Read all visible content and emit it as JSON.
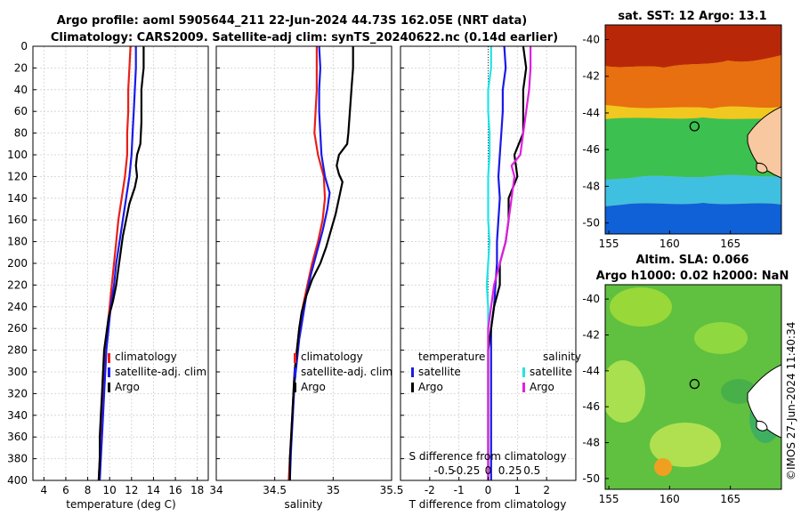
{
  "title_line1": "Argo profile: aoml 5905644_211 22-Jun-2024 44.73S 162.05E (NRT data)",
  "title_line2": "Climatology: CARS2009. Satellite-adj clim: synTS_20240622.nc (0.14d earlier)",
  "timestamp": "©IMOS 27-Jun-2024 11:40:34",
  "colors": {
    "climatology": "#e8201a",
    "satellite": "#1a1ae8",
    "argo": "#000000",
    "satellite_s": "#22e4e8",
    "argo_s": "#e020e0"
  },
  "chart_data": [
    {
      "type": "line",
      "name": "temperature-profile",
      "xlabel": "temperature (deg C)",
      "ylabel": "",
      "xlim": [
        3,
        19
      ],
      "ylim": [
        400,
        0
      ],
      "xticks": [
        4,
        6,
        8,
        10,
        12,
        14,
        16,
        18
      ],
      "yticks": [
        0,
        20,
        40,
        60,
        80,
        100,
        120,
        140,
        160,
        180,
        200,
        220,
        240,
        260,
        280,
        300,
        320,
        340,
        360,
        380,
        400
      ],
      "legend": [
        "climatology",
        "satellite-adj. clim",
        "Argo"
      ],
      "series": [
        {
          "name": "climatology",
          "color": "climatology",
          "points": [
            [
              11.9,
              0
            ],
            [
              11.8,
              20
            ],
            [
              11.7,
              40
            ],
            [
              11.7,
              60
            ],
            [
              11.6,
              80
            ],
            [
              11.6,
              100
            ],
            [
              11.4,
              120
            ],
            [
              11.1,
              140
            ],
            [
              10.8,
              160
            ],
            [
              10.6,
              180
            ],
            [
              10.4,
              200
            ],
            [
              10.2,
              220
            ],
            [
              10.0,
              240
            ],
            [
              9.8,
              260
            ],
            [
              9.6,
              280
            ],
            [
              9.5,
              300
            ],
            [
              9.4,
              320
            ],
            [
              9.3,
              340
            ],
            [
              9.2,
              360
            ],
            [
              9.1,
              380
            ],
            [
              9.0,
              400
            ]
          ]
        },
        {
          "name": "satellite-adj. clim",
          "color": "satellite",
          "points": [
            [
              12.4,
              0
            ],
            [
              12.4,
              20
            ],
            [
              12.3,
              40
            ],
            [
              12.2,
              60
            ],
            [
              12.1,
              80
            ],
            [
              12.0,
              100
            ],
            [
              11.8,
              120
            ],
            [
              11.5,
              140
            ],
            [
              11.2,
              160
            ],
            [
              10.9,
              180
            ],
            [
              10.6,
              200
            ],
            [
              10.4,
              220
            ],
            [
              10.1,
              240
            ],
            [
              9.9,
              260
            ],
            [
              9.7,
              280
            ],
            [
              9.6,
              300
            ],
            [
              9.5,
              320
            ],
            [
              9.4,
              340
            ],
            [
              9.3,
              360
            ],
            [
              9.2,
              380
            ],
            [
              9.1,
              400
            ]
          ]
        },
        {
          "name": "Argo",
          "color": "argo",
          "points": [
            [
              13.1,
              0
            ],
            [
              13.1,
              20
            ],
            [
              13.0,
              30
            ],
            [
              12.9,
              40
            ],
            [
              12.9,
              50
            ],
            [
              12.9,
              70
            ],
            [
              12.8,
              90
            ],
            [
              12.5,
              100
            ],
            [
              12.4,
              110
            ],
            [
              12.5,
              120
            ],
            [
              12.3,
              130
            ],
            [
              11.8,
              145
            ],
            [
              11.5,
              160
            ],
            [
              11.2,
              175
            ],
            [
              11.0,
              190
            ],
            [
              10.8,
              205
            ],
            [
              10.6,
              220
            ],
            [
              10.3,
              235
            ],
            [
              9.9,
              250
            ],
            [
              9.7,
              265
            ],
            [
              9.5,
              280
            ],
            [
              9.4,
              300
            ],
            [
              9.3,
              320
            ],
            [
              9.2,
              340
            ],
            [
              9.1,
              360
            ],
            [
              9.1,
              380
            ],
            [
              9.0,
              400
            ]
          ]
        }
      ]
    },
    {
      "type": "line",
      "name": "salinity-profile",
      "xlabel": "salinity",
      "ylabel": "",
      "xlim": [
        34,
        35.5
      ],
      "ylim": [
        400,
        0
      ],
      "xticks": [
        34,
        34.5,
        35,
        35.5
      ],
      "legend": [
        "climatology",
        "satellite-adj. clim",
        "Argo"
      ],
      "series": [
        {
          "name": "climatology",
          "color": "climatology",
          "points": [
            [
              34.86,
              0
            ],
            [
              34.86,
              20
            ],
            [
              34.86,
              40
            ],
            [
              34.85,
              60
            ],
            [
              34.84,
              80
            ],
            [
              34.87,
              100
            ],
            [
              34.92,
              120
            ],
            [
              34.93,
              140
            ],
            [
              34.91,
              160
            ],
            [
              34.87,
              180
            ],
            [
              34.82,
              200
            ],
            [
              34.78,
              220
            ],
            [
              34.74,
              240
            ],
            [
              34.71,
              260
            ],
            [
              34.69,
              280
            ],
            [
              34.67,
              300
            ],
            [
              34.66,
              320
            ],
            [
              34.65,
              340
            ],
            [
              34.64,
              360
            ],
            [
              34.63,
              380
            ],
            [
              34.62,
              400
            ]
          ]
        },
        {
          "name": "satellite-adj. clim",
          "color": "satellite",
          "points": [
            [
              34.88,
              0
            ],
            [
              34.89,
              20
            ],
            [
              34.88,
              40
            ],
            [
              34.88,
              60
            ],
            [
              34.89,
              80
            ],
            [
              34.9,
              100
            ],
            [
              34.93,
              120
            ],
            [
              34.97,
              135
            ],
            [
              34.95,
              150
            ],
            [
              34.91,
              170
            ],
            [
              34.86,
              190
            ],
            [
              34.81,
              210
            ],
            [
              34.77,
              230
            ],
            [
              34.74,
              250
            ],
            [
              34.71,
              270
            ],
            [
              34.69,
              290
            ],
            [
              34.67,
              310
            ],
            [
              34.66,
              330
            ],
            [
              34.65,
              350
            ],
            [
              34.64,
              370
            ],
            [
              34.63,
              400
            ]
          ]
        },
        {
          "name": "Argo",
          "color": "argo",
          "points": [
            [
              35.17,
              0
            ],
            [
              35.17,
              20
            ],
            [
              35.16,
              35
            ],
            [
              35.15,
              50
            ],
            [
              35.14,
              65
            ],
            [
              35.13,
              80
            ],
            [
              35.12,
              90
            ],
            [
              35.05,
              100
            ],
            [
              35.03,
              110
            ],
            [
              35.05,
              118
            ],
            [
              35.08,
              125
            ],
            [
              35.05,
              140
            ],
            [
              35.02,
              155
            ],
            [
              34.98,
              170
            ],
            [
              34.94,
              185
            ],
            [
              34.89,
              200
            ],
            [
              34.82,
              215
            ],
            [
              34.77,
              230
            ],
            [
              34.73,
              245
            ],
            [
              34.71,
              260
            ],
            [
              34.69,
              280
            ],
            [
              34.67,
              300
            ],
            [
              34.66,
              320
            ],
            [
              34.65,
              340
            ],
            [
              34.64,
              360
            ],
            [
              34.63,
              380
            ],
            [
              34.63,
              400
            ]
          ]
        }
      ]
    },
    {
      "type": "line",
      "name": "difference-profile",
      "xlabel": "T difference from climatology",
      "x2label": "S difference from climatology",
      "xlim": [
        -3,
        3
      ],
      "ylim": [
        400,
        0
      ],
      "xticks": [
        -2,
        -1,
        0,
        1,
        2
      ],
      "x2ticks": [
        "-0.5",
        "-0.25",
        "0",
        "0.25",
        "0.5"
      ],
      "legend_temperature": "temperature",
      "legend_salinity": "salinity",
      "legend_entries": [
        "satellite",
        "Argo",
        "satellite",
        "Argo"
      ],
      "series": [
        {
          "name": "T satellite",
          "color": "satellite",
          "points": [
            [
              0.55,
              0
            ],
            [
              0.6,
              20
            ],
            [
              0.5,
              40
            ],
            [
              0.5,
              60
            ],
            [
              0.45,
              80
            ],
            [
              0.4,
              100
            ],
            [
              0.35,
              120
            ],
            [
              0.4,
              140
            ],
            [
              0.35,
              160
            ],
            [
              0.3,
              180
            ],
            [
              0.3,
              200
            ],
            [
              0.25,
              220
            ],
            [
              0.2,
              240
            ],
            [
              0.1,
              260
            ],
            [
              0.1,
              280
            ],
            [
              0.1,
              300
            ],
            [
              0.1,
              320
            ],
            [
              0.1,
              340
            ],
            [
              0.1,
              360
            ],
            [
              0.1,
              380
            ],
            [
              0.1,
              400
            ]
          ]
        },
        {
          "name": "T Argo",
          "color": "argo",
          "points": [
            [
              1.2,
              0
            ],
            [
              1.3,
              20
            ],
            [
              1.2,
              40
            ],
            [
              1.2,
              60
            ],
            [
              1.2,
              80
            ],
            [
              0.9,
              100
            ],
            [
              1.0,
              120
            ],
            [
              0.7,
              140
            ],
            [
              0.7,
              160
            ],
            [
              0.6,
              180
            ],
            [
              0.4,
              200
            ],
            [
              0.4,
              220
            ],
            [
              0.2,
              240
            ],
            [
              0.1,
              260
            ],
            [
              0.0,
              280
            ],
            [
              0.0,
              300
            ],
            [
              0.0,
              320
            ],
            [
              0.0,
              340
            ],
            [
              0.0,
              360
            ],
            [
              0.0,
              380
            ],
            [
              0.0,
              400
            ]
          ]
        },
        {
          "name": "S satellite",
          "color": "satellite_s",
          "points": [
            [
              0.1,
              0
            ],
            [
              0.1,
              20
            ],
            [
              0.0,
              40
            ],
            [
              0.0,
              60
            ],
            [
              0.05,
              80
            ],
            [
              0.05,
              100
            ],
            [
              0.0,
              120
            ],
            [
              0.0,
              140
            ],
            [
              0.0,
              160
            ],
            [
              0.05,
              180
            ],
            [
              0.0,
              200
            ],
            [
              -0.05,
              220
            ],
            [
              0.0,
              240
            ],
            [
              0.0,
              260
            ],
            [
              0.0,
              280
            ],
            [
              0.0,
              300
            ],
            [
              0.0,
              320
            ],
            [
              0.0,
              340
            ],
            [
              0.0,
              360
            ],
            [
              0.0,
              380
            ],
            [
              0.0,
              400
            ]
          ]
        },
        {
          "name": "S Argo",
          "color": "argo_s",
          "points": [
            [
              1.45,
              0
            ],
            [
              1.45,
              20
            ],
            [
              1.4,
              40
            ],
            [
              1.3,
              60
            ],
            [
              1.2,
              80
            ],
            [
              1.1,
              100
            ],
            [
              0.8,
              110
            ],
            [
              0.9,
              120
            ],
            [
              0.8,
              140
            ],
            [
              0.7,
              160
            ],
            [
              0.6,
              180
            ],
            [
              0.4,
              200
            ],
            [
              0.2,
              220
            ],
            [
              0.1,
              240
            ],
            [
              0.0,
              260
            ],
            [
              0.0,
              300
            ],
            [
              0.0,
              320
            ],
            [
              0.0,
              340
            ],
            [
              0.0,
              360
            ],
            [
              0.0,
              380
            ],
            [
              0.0,
              400
            ]
          ]
        }
      ]
    },
    {
      "type": "heatmap",
      "name": "sst-map",
      "title": "sat. SST: 12 Argo: 13.1",
      "xticks": [
        "155",
        "160",
        "165"
      ],
      "yticks": [
        "-40",
        "-42",
        "-44",
        "-46",
        "-48",
        "-50"
      ],
      "xlim": [
        154.7,
        169.2
      ],
      "ylim": [
        -50.6,
        -39.2
      ],
      "argo_position": [
        162.05,
        -44.73
      ]
    },
    {
      "type": "heatmap",
      "name": "sla-map",
      "title_line1": "Altim. SLA: 0.066",
      "title_line2": "Argo h1000: 0.02 h2000: NaN",
      "xticks": [
        "155",
        "160",
        "165"
      ],
      "yticks": [
        "-40",
        "-42",
        "-44",
        "-46",
        "-48",
        "-50"
      ],
      "xlim": [
        154.7,
        169.2
      ],
      "ylim": [
        -50.6,
        -39.2
      ],
      "argo_position": [
        162.05,
        -44.73
      ]
    }
  ]
}
